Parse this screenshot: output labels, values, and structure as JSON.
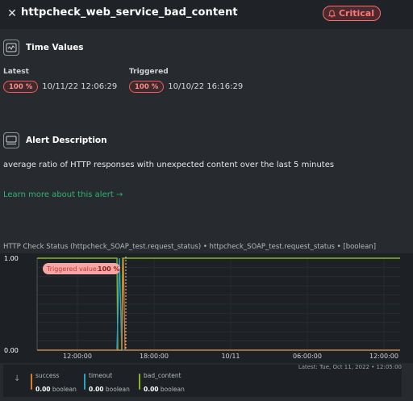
{
  "header": {
    "close_icon": "close-icon",
    "title": "httpcheck_web_service_bad_content",
    "status_badge": "Critical",
    "status_color": "#ff6b6b"
  },
  "time_values": {
    "section_title": "Time Values",
    "latest_label": "Latest",
    "latest_value": "100 %",
    "latest_time": "10/11/22 12:06:29",
    "triggered_label": "Triggered",
    "triggered_value": "100 %",
    "triggered_time": "10/10/22 16:16:29"
  },
  "alert_description": {
    "section_title": "Alert Description",
    "text": "average ratio of HTTP responses with unexpected content over the last 5 minutes",
    "learn_more": "Learn more about this alert →"
  },
  "chart": {
    "title": "HTTP Check Status (httpcheck_SOAP_test.request_status) • httpcheck_SOAP_test.request_status • [boolean]",
    "triggered_label": "Triggered value:",
    "triggered_value": "100 %",
    "latest": "Latest: Tue, Oct 11, 2022 • 12:05:00",
    "down_arrow": "↓"
  },
  "chart_data": {
    "type": "line",
    "x_ticks": [
      "12:00:00",
      "18:00:00",
      "10/11",
      "06:00:00",
      "12:00:00"
    ],
    "y_ticks": [
      "1.00",
      "0.00"
    ],
    "ylim": [
      0,
      1
    ],
    "series": [
      {
        "name": "success",
        "color": "#e07a2a",
        "latest": "0.00",
        "unit": "boolean"
      },
      {
        "name": "timeout",
        "color": "#26a4c4",
        "latest": "0.00",
        "unit": "boolean"
      },
      {
        "name": "bad_content",
        "color": "#80b82a",
        "latest": "0.00",
        "unit": "boolean"
      }
    ]
  }
}
